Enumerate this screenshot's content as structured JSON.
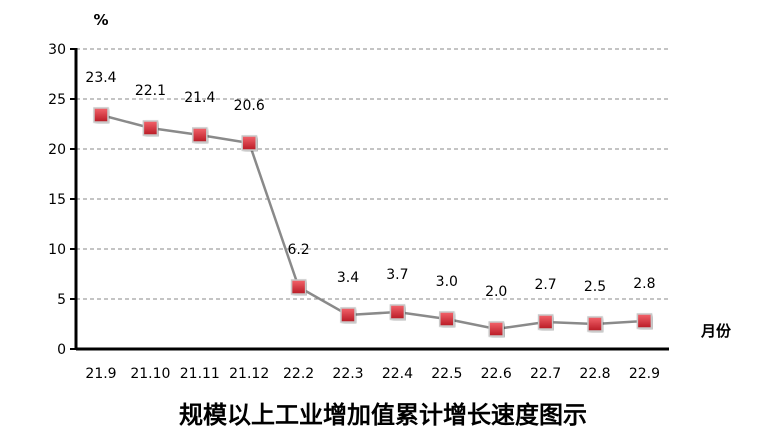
{
  "chart_data": {
    "type": "line",
    "title": "规模以上工业增加值累计增长速度图示",
    "ylabel": "%",
    "xlabel": "月份",
    "categories": [
      "21.9",
      "21.10",
      "21.11",
      "21.12",
      "22.2",
      "22.3",
      "22.4",
      "22.5",
      "22.6",
      "22.7",
      "22.8",
      "22.9"
    ],
    "values": [
      23.4,
      22.1,
      21.4,
      20.6,
      6.2,
      3.4,
      3.7,
      3.0,
      2.0,
      2.7,
      2.5,
      2.8
    ],
    "data_labels": [
      "23.4",
      "22.1",
      "21.4",
      "20.6",
      "6.2",
      "3.4",
      "3.7",
      "3.0",
      "2.0",
      "2.7",
      "2.5",
      "2.8"
    ],
    "ylim": [
      0,
      30
    ],
    "yticks": [
      "0",
      "5",
      "10",
      "15",
      "20",
      "25",
      "30"
    ],
    "grid": true,
    "colors": {
      "line": "#8a8a8a",
      "marker": "#e0303a",
      "grid": "#888888"
    }
  }
}
